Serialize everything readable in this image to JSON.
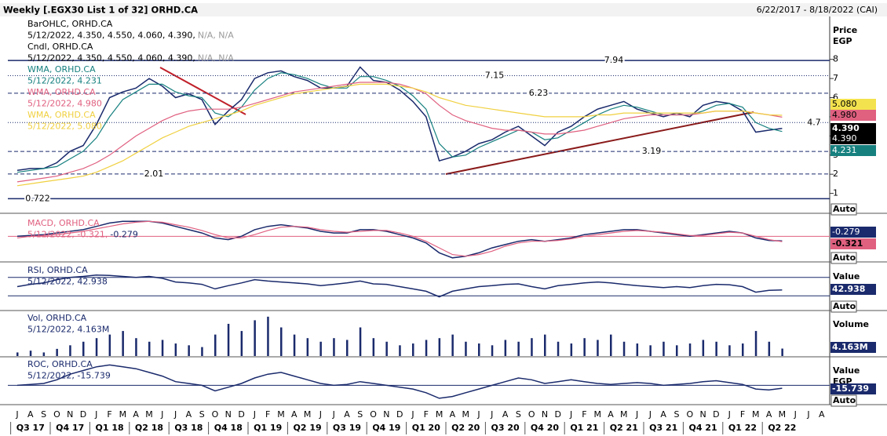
{
  "header": {
    "title": "Weekly [.EGX30 List 1 of 32] ORHD.CA",
    "range": "6/22/2017 - 8/18/2022 (CAI)"
  },
  "categories": [
    "J",
    "A",
    "S",
    "O",
    "N",
    "D",
    "J",
    "F",
    "M",
    "A",
    "M",
    "J",
    "J",
    "A",
    "S",
    "O",
    "N",
    "D",
    "J",
    "F",
    "M",
    "A",
    "M",
    "J",
    "J",
    "A",
    "S",
    "O",
    "N",
    "D",
    "J",
    "F",
    "M",
    "A",
    "M",
    "J",
    "J",
    "A",
    "S",
    "O",
    "N",
    "D",
    "J",
    "F",
    "M",
    "A",
    "M",
    "J",
    "J",
    "A",
    "S",
    "O",
    "N",
    "D",
    "J",
    "F",
    "M",
    "A",
    "M",
    "J",
    "J",
    "A"
  ],
  "quarters": [
    "Q3 17",
    "Q4 17",
    "Q1 18",
    "Q2 18",
    "Q3 18",
    "Q4 18",
    "Q1 19",
    "Q2 19",
    "Q3 19",
    "Q4 19",
    "Q1 20",
    "Q2 20",
    "Q3 20",
    "Q4 20",
    "Q1 21",
    "Q2 21",
    "Q3 21",
    "Q4 21",
    "Q1 22",
    "Q2 22"
  ],
  "chart_data": [
    {
      "type": "line",
      "axis_title": [
        "Price",
        "EGP"
      ],
      "scale_mode": "Auto",
      "ylim": [
        0,
        10.2
      ],
      "yticks": [
        1,
        2,
        3,
        4,
        5,
        6,
        7,
        8
      ],
      "extra_legend": [
        {
          "name": "BarOHLC, ORHD.CA",
          "detail": "5/12/2022, 4.350, 4.550, 4.060, 4.390,",
          "na": "N/A, N/A"
        }
      ],
      "levels": [
        {
          "value": 7.94,
          "style": "solid"
        },
        {
          "value": 7.15,
          "style": "dotted"
        },
        {
          "value": 6.23,
          "style": "dashed"
        },
        {
          "value": 4.7,
          "style": "dotted"
        },
        {
          "value": 3.19,
          "style": "dashed"
        },
        {
          "value": 2.01,
          "style": "dashed"
        },
        {
          "value": 0.722,
          "style": "solid"
        }
      ],
      "series": [
        {
          "name": "Cndl, ORHD.CA",
          "detail": "5/12/2022, 4.350, 4.550, 4.060, 4.390,",
          "na": "N/A, N/A",
          "color": "#1a2a6c",
          "values": [
            2.2,
            2.3,
            2.3,
            2.6,
            3.2,
            3.5,
            4.6,
            6.0,
            6.3,
            6.5,
            7.0,
            6.6,
            6.0,
            6.2,
            5.9,
            4.6,
            5.3,
            5.9,
            7.0,
            7.3,
            7.4,
            7.1,
            6.9,
            6.5,
            6.5,
            6.6,
            7.6,
            6.9,
            6.8,
            6.4,
            5.8,
            5.0,
            2.7,
            2.9,
            3.2,
            3.6,
            3.8,
            4.2,
            4.5,
            4.0,
            3.5,
            4.2,
            4.5,
            5.0,
            5.4,
            5.6,
            5.8,
            5.4,
            5.2,
            5.0,
            5.2,
            5.0,
            5.6,
            5.8,
            5.7,
            5.3,
            4.2,
            4.3,
            4.39,
            null,
            null,
            null
          ]
        },
        {
          "name": "WMA, ORHD.CA",
          "detail": "5/12/2022, 4.231",
          "color": "#16807f",
          "values": [
            2.1,
            2.2,
            2.3,
            2.4,
            2.8,
            3.2,
            3.9,
            5.0,
            5.9,
            6.3,
            6.7,
            6.7,
            6.3,
            6.1,
            6.0,
            5.2,
            5.0,
            5.5,
            6.4,
            7.0,
            7.3,
            7.2,
            7.0,
            6.7,
            6.5,
            6.5,
            7.1,
            7.1,
            6.9,
            6.6,
            6.1,
            5.4,
            3.6,
            2.9,
            3.0,
            3.4,
            3.7,
            4.0,
            4.3,
            4.2,
            3.8,
            3.9,
            4.3,
            4.7,
            5.1,
            5.4,
            5.6,
            5.5,
            5.3,
            5.1,
            5.1,
            5.1,
            5.3,
            5.6,
            5.7,
            5.5,
            4.7,
            4.4,
            4.231,
            null,
            null,
            null
          ]
        },
        {
          "name": "WMA, ORHD.CA",
          "detail": "5/12/2022, 4.980",
          "color": "#e06080",
          "values": [
            1.6,
            1.7,
            1.8,
            1.9,
            2.1,
            2.3,
            2.6,
            3.0,
            3.5,
            4.0,
            4.4,
            4.8,
            5.1,
            5.3,
            5.4,
            5.4,
            5.4,
            5.5,
            5.7,
            5.9,
            6.1,
            6.3,
            6.4,
            6.5,
            6.6,
            6.7,
            6.8,
            6.8,
            6.8,
            6.7,
            6.5,
            6.2,
            5.6,
            5.1,
            4.8,
            4.6,
            4.4,
            4.3,
            4.3,
            4.2,
            4.1,
            4.1,
            4.2,
            4.3,
            4.5,
            4.7,
            4.9,
            5.0,
            5.1,
            5.1,
            5.1,
            5.1,
            5.2,
            5.3,
            5.3,
            5.3,
            5.2,
            5.1,
            4.98,
            null,
            null,
            null
          ]
        },
        {
          "name": "WMA, ORHD.CA",
          "detail": "5/12/2022, 5.080",
          "color": "#f0d040",
          "values": [
            1.4,
            1.5,
            1.6,
            1.7,
            1.8,
            1.9,
            2.1,
            2.4,
            2.7,
            3.1,
            3.5,
            3.9,
            4.2,
            4.5,
            4.7,
            4.9,
            5.1,
            5.3,
            5.6,
            5.8,
            6.0,
            6.2,
            6.3,
            6.4,
            6.5,
            6.6,
            6.7,
            6.7,
            6.7,
            6.6,
            6.5,
            6.3,
            6.0,
            5.8,
            5.6,
            5.5,
            5.4,
            5.3,
            5.2,
            5.1,
            5.0,
            5.0,
            5.0,
            5.0,
            5.1,
            5.1,
            5.2,
            5.2,
            5.2,
            5.2,
            5.2,
            5.2,
            5.2,
            5.3,
            5.3,
            5.3,
            5.2,
            5.1,
            5.08,
            null,
            null,
            null
          ]
        }
      ],
      "badges": [
        {
          "label": "5.080",
          "color": "#f3e24e",
          "text": "#000000"
        },
        {
          "label": "4.980",
          "color": "#e06080",
          "text": "#000000"
        },
        {
          "label": "4.390",
          "color": "#000000",
          "text": "#ffffff",
          "bold": true
        },
        {
          "label": "4.390",
          "color": "#000000",
          "text": "#ffffff"
        },
        {
          "label": "4.231",
          "color": "#16807f",
          "text": "#ffffff"
        }
      ]
    },
    {
      "type": "line",
      "scale_mode": "Auto",
      "ylim": [
        -1.5,
        1.2
      ],
      "levels": [
        {
          "value": 0,
          "style": "solid",
          "color": "#e06080"
        }
      ],
      "legend_name": "MACD, ORHD.CA",
      "series": [
        {
          "detail": "-0.279",
          "color": "#1a2a6c",
          "values": [
            0.0,
            0.05,
            0.1,
            0.2,
            0.3,
            0.4,
            0.6,
            0.8,
            0.9,
            0.9,
            0.9,
            0.8,
            0.6,
            0.4,
            0.2,
            -0.1,
            -0.2,
            0.0,
            0.4,
            0.6,
            0.7,
            0.6,
            0.5,
            0.3,
            0.2,
            0.2,
            0.4,
            0.4,
            0.3,
            0.1,
            -0.1,
            -0.4,
            -1.0,
            -1.3,
            -1.2,
            -1.0,
            -0.7,
            -0.5,
            -0.3,
            -0.2,
            -0.3,
            -0.2,
            -0.1,
            0.1,
            0.2,
            0.3,
            0.4,
            0.4,
            0.3,
            0.2,
            0.1,
            0.0,
            0.1,
            0.2,
            0.3,
            0.2,
            -0.1,
            -0.25,
            -0.279,
            null,
            null,
            null
          ]
        },
        {
          "detail": "5/12/2022, -0.321,",
          "color": "#e06080",
          "values": [
            -0.1,
            0.0,
            0.05,
            0.1,
            0.2,
            0.3,
            0.45,
            0.6,
            0.75,
            0.85,
            0.9,
            0.85,
            0.7,
            0.55,
            0.35,
            0.1,
            -0.1,
            -0.1,
            0.1,
            0.35,
            0.55,
            0.6,
            0.55,
            0.4,
            0.3,
            0.25,
            0.3,
            0.35,
            0.35,
            0.2,
            0.0,
            -0.3,
            -0.7,
            -1.1,
            -1.2,
            -1.1,
            -0.9,
            -0.6,
            -0.4,
            -0.3,
            -0.3,
            -0.25,
            -0.15,
            0.0,
            0.1,
            0.2,
            0.3,
            0.35,
            0.3,
            0.25,
            0.15,
            0.05,
            0.05,
            0.15,
            0.25,
            0.2,
            0.0,
            -0.2,
            -0.321,
            null,
            null,
            null
          ]
        }
      ],
      "badges": [
        {
          "label": "-0.279",
          "color": "#1a2a6c",
          "text": "#ffffff"
        },
        {
          "label": "-0.321",
          "color": "#e06080",
          "text": "#000000",
          "bold": true
        }
      ]
    },
    {
      "type": "line",
      "axis_title": [
        "Value"
      ],
      "scale_mode": "Auto",
      "ylim": [
        0,
        100
      ],
      "levels": [
        {
          "value": 70,
          "style": "solid",
          "color": "#1a2a6c"
        },
        {
          "value": 30,
          "style": "solid",
          "color": "#1a2a6c"
        }
      ],
      "legend_name": "RSI, ORHD.CA",
      "series": [
        {
          "detail": "5/12/2022, 42.938",
          "color": "#1a2a6c",
          "values": [
            50,
            55,
            58,
            65,
            70,
            72,
            75,
            74,
            72,
            70,
            72,
            68,
            60,
            58,
            55,
            45,
            52,
            58,
            65,
            62,
            60,
            58,
            56,
            52,
            55,
            58,
            62,
            56,
            55,
            50,
            45,
            40,
            28,
            40,
            45,
            50,
            52,
            55,
            56,
            50,
            45,
            52,
            55,
            58,
            60,
            58,
            55,
            52,
            50,
            48,
            50,
            48,
            52,
            55,
            54,
            50,
            38,
            42,
            42.938,
            null,
            null,
            null
          ]
        }
      ],
      "badges": [
        {
          "label": "42.938",
          "color": "#1a2a6c",
          "text": "#ffffff",
          "bold": true
        }
      ]
    },
    {
      "type": "bar",
      "axis_title": [
        "Volume"
      ],
      "ylim": [
        0,
        25
      ],
      "legend_name": "Vol, ORHD.CA",
      "series": [
        {
          "detail": "5/12/2022, 4.163M",
          "color": "#1a2a6c",
          "values": [
            2,
            3,
            2,
            4,
            6,
            8,
            10,
            12,
            14,
            10,
            8,
            9,
            7,
            6,
            5,
            12,
            18,
            14,
            20,
            22,
            16,
            12,
            10,
            8,
            10,
            9,
            16,
            10,
            8,
            6,
            7,
            9,
            10,
            12,
            8,
            7,
            6,
            9,
            8,
            10,
            12,
            8,
            7,
            10,
            9,
            12,
            8,
            7,
            6,
            8,
            6,
            7,
            9,
            8,
            6,
            7,
            14,
            8,
            4.163,
            null,
            null,
            null
          ]
        }
      ],
      "badges": [
        {
          "label": "4.163M",
          "color": "#1a2a6c",
          "text": "#ffffff",
          "bold": true
        }
      ]
    },
    {
      "type": "line",
      "axis_title": [
        "Value",
        "EGP"
      ],
      "scale_mode": "Auto",
      "ylim": [
        -100,
        150
      ],
      "levels": [
        {
          "value": 0,
          "style": "solid",
          "color": "#1a2a6c"
        }
      ],
      "legend_name": "ROC, ORHD.CA",
      "series": [
        {
          "detail": "5/12/2022, -15.739",
          "color": "#1a2a6c",
          "values": [
            0,
            5,
            10,
            30,
            60,
            80,
            100,
            110,
            100,
            90,
            70,
            50,
            20,
            10,
            0,
            -30,
            -10,
            10,
            40,
            60,
            70,
            50,
            30,
            10,
            0,
            5,
            20,
            10,
            0,
            -10,
            -20,
            -40,
            -70,
            -60,
            -40,
            -20,
            0,
            20,
            40,
            30,
            10,
            20,
            30,
            20,
            10,
            5,
            10,
            15,
            10,
            0,
            5,
            10,
            20,
            25,
            15,
            5,
            -20,
            -25,
            -15.739,
            null,
            null,
            null
          ]
        }
      ],
      "badges": [
        {
          "label": "-15.739",
          "color": "#1a2a6c",
          "text": "#ffffff",
          "bold": true
        }
      ]
    }
  ]
}
